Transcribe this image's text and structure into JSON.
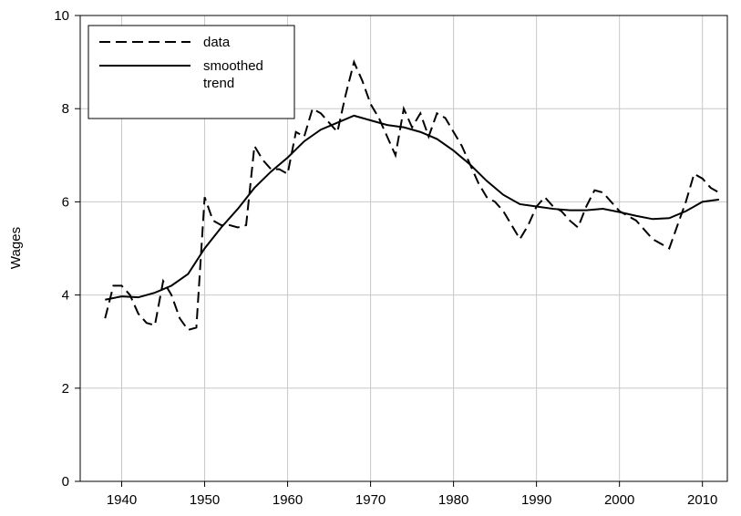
{
  "chart_data": {
    "type": "line",
    "y_label": "Wages",
    "xlim": [
      1935,
      2013
    ],
    "xticks": [
      1940,
      1950,
      1960,
      1970,
      1980,
      1990,
      2000,
      2010
    ],
    "ylim": [
      0,
      10
    ],
    "yticks": [
      0,
      2,
      4,
      6,
      8,
      10
    ],
    "grid": true,
    "legend": "upper left",
    "series": [
      {
        "name": "data",
        "color": "#000000",
        "dash": true,
        "x": [
          1938,
          1939,
          1940,
          1941,
          1942,
          1943,
          1944,
          1945,
          1946,
          1947,
          1948,
          1949,
          1950,
          1951,
          1952,
          1953,
          1954,
          1955,
          1956,
          1957,
          1958,
          1959,
          1960,
          1961,
          1962,
          1963,
          1964,
          1965,
          1966,
          1967,
          1968,
          1969,
          1970,
          1971,
          1972,
          1973,
          1974,
          1975,
          1976,
          1977,
          1978,
          1979,
          1980,
          1981,
          1982,
          1983,
          1984,
          1985,
          1986,
          1987,
          1988,
          1989,
          1990,
          1991,
          1992,
          1993,
          1994,
          1995,
          1996,
          1997,
          1998,
          1999,
          2000,
          2001,
          2002,
          2003,
          2004,
          2005,
          2006,
          2007,
          2008,
          2009,
          2010,
          2011,
          2012
        ],
        "values": [
          3.5,
          4.2,
          4.2,
          4.0,
          3.6,
          3.4,
          3.35,
          4.3,
          4.0,
          3.5,
          3.25,
          3.3,
          6.1,
          5.6,
          5.5,
          5.5,
          5.45,
          5.5,
          7.2,
          6.9,
          6.7,
          6.7,
          6.6,
          7.5,
          7.4,
          8.0,
          7.9,
          7.7,
          7.5,
          8.3,
          9.0,
          8.6,
          8.1,
          7.8,
          7.4,
          7.0,
          8.0,
          7.6,
          7.9,
          7.4,
          7.9,
          7.8,
          7.5,
          7.2,
          6.8,
          6.4,
          6.1,
          6.0,
          5.8,
          5.5,
          5.2,
          5.5,
          5.9,
          6.1,
          5.9,
          5.8,
          5.6,
          5.45,
          5.9,
          6.25,
          6.2,
          6.0,
          5.8,
          5.7,
          5.6,
          5.4,
          5.2,
          5.1,
          5.0,
          5.5,
          6.0,
          6.6,
          6.5,
          6.3,
          6.2
        ]
      },
      {
        "name": "smoothed trend",
        "color": "#000000",
        "dash": false,
        "x": [
          1938,
          1940,
          1942,
          1944,
          1946,
          1948,
          1950,
          1952,
          1954,
          1956,
          1958,
          1960,
          1962,
          1964,
          1966,
          1968,
          1970,
          1972,
          1974,
          1976,
          1978,
          1980,
          1982,
          1984,
          1986,
          1988,
          1990,
          1992,
          1994,
          1996,
          1998,
          2000,
          2002,
          2004,
          2006,
          2008,
          2010,
          2012
        ],
        "values": [
          3.9,
          3.97,
          3.95,
          4.05,
          4.2,
          4.45,
          5.0,
          5.45,
          5.85,
          6.3,
          6.65,
          6.95,
          7.3,
          7.55,
          7.7,
          7.85,
          7.75,
          7.65,
          7.6,
          7.5,
          7.35,
          7.1,
          6.8,
          6.45,
          6.15,
          5.95,
          5.9,
          5.85,
          5.82,
          5.82,
          5.85,
          5.78,
          5.7,
          5.63,
          5.65,
          5.8,
          6.0,
          6.05
        ]
      }
    ]
  }
}
